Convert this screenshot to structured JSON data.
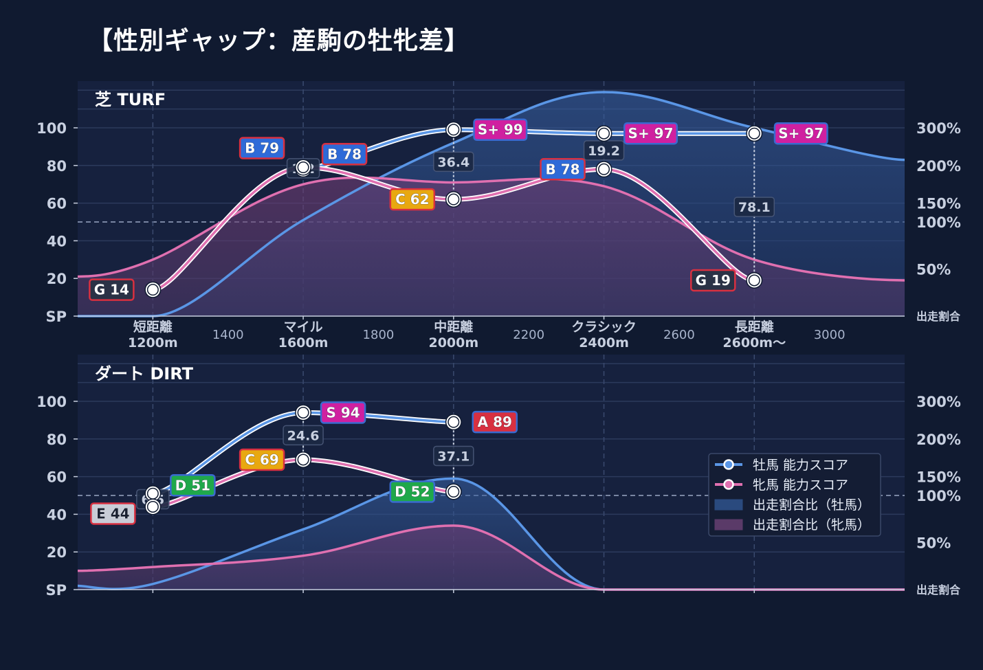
{
  "title": "【性別ギャップ：産駒の牡牝差】",
  "colors": {
    "bg": "#101a30",
    "plot_bg": "#16213e",
    "colt": "#5a96e6",
    "filly": "#e070b0",
    "colt_fill": "#2a4a7e",
    "filly_fill": "#5a3a68"
  },
  "legend": {
    "colt_score": "牡馬 能力スコア",
    "filly_score": "牝馬 能力スコア",
    "colt_ratio": "出走割合比（牡馬）",
    "filly_ratio": "出走割合比（牝馬）"
  },
  "chart_data": [
    {
      "type": "line",
      "panel": "芝 TURF",
      "x_categories": [
        {
          "x": 1200,
          "label": [
            "短距離",
            "1200m"
          ]
        },
        {
          "x": 1400,
          "label": [
            "1400"
          ]
        },
        {
          "x": 1600,
          "label": [
            "マイル",
            "1600m"
          ]
        },
        {
          "x": 1800,
          "label": [
            "1800"
          ]
        },
        {
          "x": 2000,
          "label": [
            "中距離",
            "2000m"
          ]
        },
        {
          "x": 2200,
          "label": [
            "2200"
          ]
        },
        {
          "x": 2400,
          "label": [
            "クラシック",
            "2400m"
          ]
        },
        {
          "x": 2600,
          "label": [
            "2600"
          ]
        },
        {
          "x": 2800,
          "label": [
            "長距離",
            "2600m〜"
          ]
        },
        {
          "x": 3000,
          "label": [
            "3000"
          ]
        }
      ],
      "y_left_ticks": [
        "SP",
        "20",
        "40",
        "60",
        "80",
        "100"
      ],
      "y_right_ticks": [
        "出走割合",
        "50%",
        "100%",
        "150%",
        "200%",
        "300%"
      ],
      "xlim": [
        1000,
        3200
      ],
      "ylim": [
        0,
        120
      ],
      "series": [
        {
          "name": "牡馬 能力スコア",
          "x": [
            1600,
            2000,
            2400,
            2800
          ],
          "values": [
            78,
            99,
            97,
            97
          ],
          "grades": [
            "B 78",
            "S+ 99",
            "S+ 97",
            "S+ 97"
          ]
        },
        {
          "name": "牝馬 能力スコア",
          "x": [
            1200,
            1600,
            2000,
            2400,
            2800
          ],
          "values": [
            14,
            79,
            62,
            78,
            19
          ],
          "grades": [
            "G 14",
            "B 79",
            "C 62",
            "B 78",
            "G 19"
          ]
        },
        {
          "name": "出走割合比（牡馬）",
          "x": [
            1000,
            1200,
            1600,
            2000,
            2400,
            2800,
            3200
          ],
          "values": [
            0,
            0,
            51,
            92,
            119,
            100,
            83
          ]
        },
        {
          "name": "出走割合比（牝馬）",
          "x": [
            1000,
            1200,
            1600,
            2000,
            2400,
            2800,
            3200
          ],
          "values": [
            21,
            30,
            70,
            71,
            69,
            30,
            19
          ]
        }
      ],
      "gap_labels": [
        {
          "x": 1600,
          "text": "1.2"
        },
        {
          "x": 2000,
          "text": "36.4"
        },
        {
          "x": 2400,
          "text": "19.2"
        },
        {
          "x": 2800,
          "text": "78.1"
        }
      ]
    },
    {
      "type": "line",
      "panel": "ダート DIRT",
      "y_left_ticks": [
        "SP",
        "20",
        "40",
        "60",
        "80",
        "100"
      ],
      "y_right_ticks": [
        "出走割合",
        "50%",
        "100%",
        "150%",
        "200%",
        "300%"
      ],
      "xlim": [
        1000,
        3200
      ],
      "ylim": [
        0,
        120
      ],
      "series": [
        {
          "name": "牡馬 能力スコア",
          "x": [
            1200,
            1600,
            2000
          ],
          "values": [
            51,
            94,
            89
          ],
          "grades": [
            "D 51",
            "S 94",
            "A 89"
          ]
        },
        {
          "name": "牝馬 能力スコア",
          "x": [
            1200,
            1600,
            2000
          ],
          "values": [
            44,
            69,
            52
          ],
          "grades": [
            "E 44",
            "C 69",
            "D 52"
          ]
        },
        {
          "name": "出走割合比（牡馬）",
          "x": [
            1000,
            1200,
            1600,
            2000,
            2400,
            2800,
            3200
          ],
          "values": [
            2,
            3,
            32,
            59,
            0,
            0,
            0
          ]
        },
        {
          "name": "出走割合比（牝馬）",
          "x": [
            1000,
            1200,
            1600,
            2000,
            2400,
            2800,
            3200
          ],
          "values": [
            10,
            12,
            18,
            34,
            0,
            0,
            0
          ]
        }
      ],
      "gap_labels": [
        {
          "x": 1200,
          "text": "6.5"
        },
        {
          "x": 1600,
          "text": "24.6"
        },
        {
          "x": 2000,
          "text": "37.1"
        }
      ]
    }
  ]
}
